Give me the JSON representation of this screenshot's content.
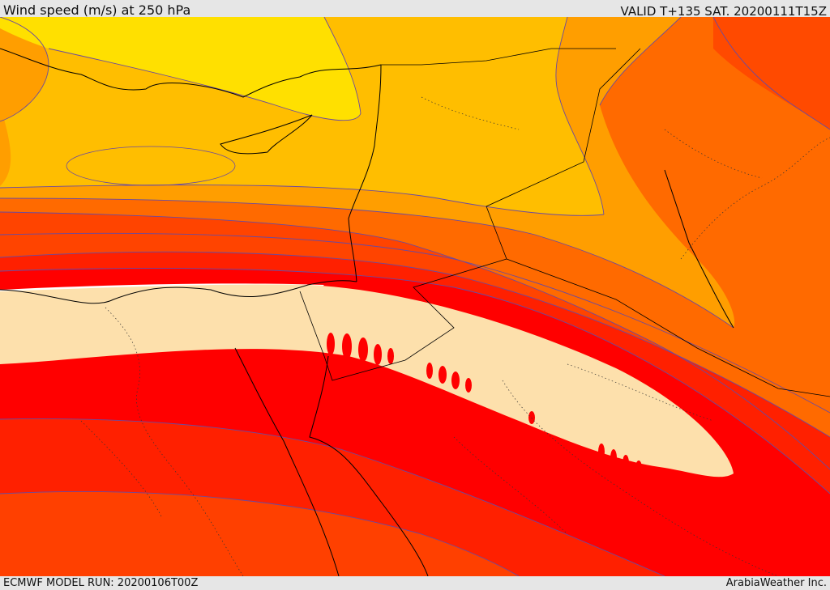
{
  "header": {
    "title": "Wind speed (m/s) at 250 hPa",
    "valid": "VALID T+135 SAT. 20200111T15Z"
  },
  "footer": {
    "model_run": "ECMWF MODEL RUN: 20200106T00Z",
    "credit": "ArabiaWeather Inc."
  },
  "map": {
    "variable": "wind speed",
    "level": "250 hPa",
    "colors": {
      "yellow": "#ffe000",
      "light_orange": "#ffbe00",
      "orange": "#ff9e00",
      "dark_orange": "#ff6a00",
      "red_orange": "#ff4000",
      "red": "#ff2000",
      "pure_red": "#ff0000",
      "peach": "#fde0ac",
      "white": "#ffffff",
      "contour_line": "#6a4aa0",
      "border": "#000000"
    }
  }
}
